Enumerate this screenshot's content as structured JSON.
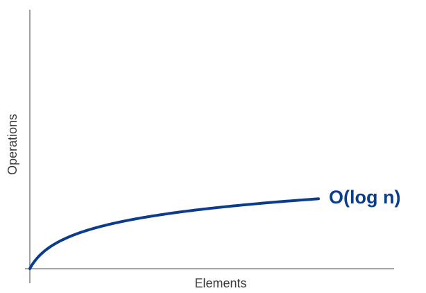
{
  "chart_data": {
    "type": "line",
    "title": "",
    "xlabel": "Elements",
    "ylabel": "Operations",
    "grid": false,
    "legend": "none",
    "axis_ticks": false,
    "series": [
      {
        "name": "O(log n)",
        "color": "#0c3d8c",
        "function": "log",
        "x": [
          0,
          5,
          10,
          20,
          40,
          80,
          120,
          160,
          200,
          240,
          280,
          320,
          360,
          400,
          420
        ],
        "y": [
          0,
          0.11,
          0.17,
          0.24,
          0.36,
          0.5,
          0.58,
          0.64,
          0.69,
          0.73,
          0.77,
          0.8,
          0.83,
          0.86,
          0.87
        ]
      }
    ],
    "xlim": [
      0,
      530
    ],
    "ylim": [
      0,
      3.4
    ]
  }
}
